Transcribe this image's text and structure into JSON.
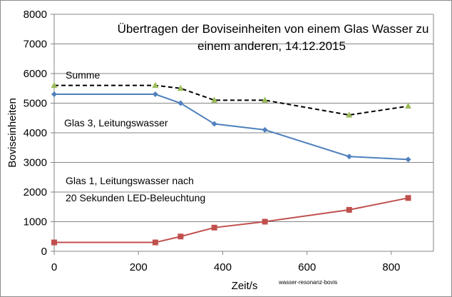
{
  "chart_data": {
    "type": "line",
    "title_lines": [
      "Übertragen der Boviseinheiten von einem Glas Wasser zu",
      "einem anderen, 14.12.2015"
    ],
    "xlabel": "Zeit/s",
    "ylabel": "Boviseinheiten",
    "xlim": [
      0,
      900
    ],
    "ylim": [
      0,
      8000
    ],
    "xticks": [
      0,
      200,
      400,
      600,
      800
    ],
    "yticks": [
      0,
      1000,
      2000,
      3000,
      4000,
      5000,
      6000,
      7000,
      8000
    ],
    "grid": "horizontal",
    "series": [
      {
        "name": "Summe",
        "color": "#000000",
        "marker_color": "#9bbb59",
        "marker": "triangle",
        "dash": true,
        "x": [
          0,
          240,
          300,
          380,
          500,
          700,
          840
        ],
        "y": [
          5600,
          5600,
          5500,
          5100,
          5100,
          4600,
          4900
        ]
      },
      {
        "name": "Glas 3, Leitungswasser",
        "color": "#4f81bd",
        "marker_color": "#4f81bd",
        "marker": "diamond",
        "dash": false,
        "x": [
          0,
          240,
          300,
          380,
          500,
          700,
          840
        ],
        "y": [
          5300,
          5300,
          5000,
          4300,
          4100,
          3200,
          3100
        ]
      },
      {
        "name_lines": [
          "Glas 1, Leitungswasser nach",
          "20 Sekunden LED-Beleuchtung"
        ],
        "color": "#c0504d",
        "marker_color": "#c0504d",
        "marker": "square",
        "dash": false,
        "x": [
          0,
          240,
          300,
          380,
          500,
          700,
          840
        ],
        "y": [
          300,
          300,
          500,
          800,
          1000,
          1400,
          1800
        ]
      }
    ],
    "watermark": "wasser-resonanz-bovis"
  }
}
